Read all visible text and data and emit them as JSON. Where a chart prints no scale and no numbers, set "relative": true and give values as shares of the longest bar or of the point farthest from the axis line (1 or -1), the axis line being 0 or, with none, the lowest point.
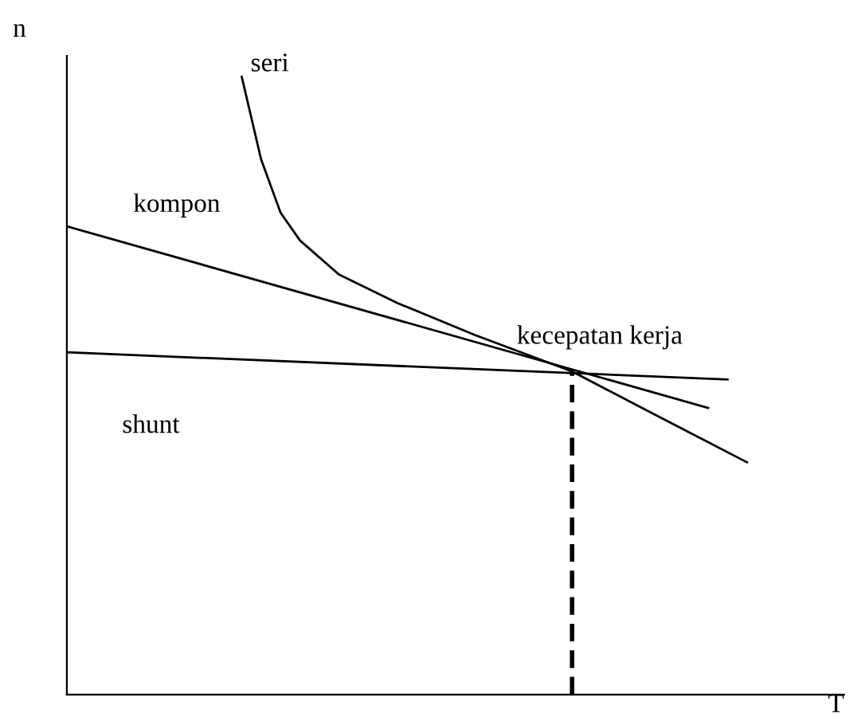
{
  "chart_data": {
    "type": "line",
    "relative": true,
    "xlabel": "T",
    "ylabel": "n",
    "tick_labels": false,
    "legend": false,
    "categories": [
      null,
      null,
      null,
      null,
      null,
      null,
      null,
      null,
      null,
      null,
      null,
      null,
      null,
      null,
      null,
      null,
      null,
      null,
      null,
      null,
      null,
      null,
      null,
      null,
      null,
      null,
      null,
      null,
      null,
      null,
      null,
      null,
      null,
      null,
      null,
      null,
      null,
      null,
      null,
      null,
      null
    ],
    "series": [
      {
        "name": "seri",
        "color": "#000000",
        "values": [
          null,
          null,
          null,
          null,
          null,
          null,
          null,
          null,
          null,
          1.0,
          0.866,
          0.78,
          0.735,
          null,
          0.68,
          null,
          null,
          0.634,
          null,
          null,
          null,
          0.582,
          null,
          null,
          null,
          null,
          0.523,
          null,
          null,
          null,
          null,
          0.441,
          null,
          null,
          null,
          0.376,
          null,
          null,
          null,
          null,
          null
        ]
      },
      {
        "name": "kompon",
        "color": "#000000",
        "values": [
          0.758,
          null,
          null,
          null,
          null,
          null,
          null,
          null,
          null,
          null,
          null,
          null,
          null,
          null,
          null,
          null,
          null,
          null,
          null,
          null,
          null,
          null,
          null,
          null,
          null,
          null,
          null,
          null,
          null,
          null,
          null,
          null,
          null,
          0.464,
          null,
          null,
          null,
          null,
          null,
          null,
          null
        ]
      },
      {
        "name": "shunt",
        "color": "#000000",
        "values": [
          0.554,
          null,
          null,
          null,
          null,
          null,
          null,
          null,
          null,
          null,
          null,
          null,
          null,
          null,
          null,
          null,
          null,
          null,
          null,
          null,
          null,
          null,
          null,
          null,
          null,
          null,
          null,
          null,
          null,
          null,
          null,
          null,
          null,
          null,
          0.51,
          null,
          null,
          null,
          null,
          null,
          null
        ]
      }
    ],
    "annotations": [
      "kecepatan kerja"
    ]
  }
}
